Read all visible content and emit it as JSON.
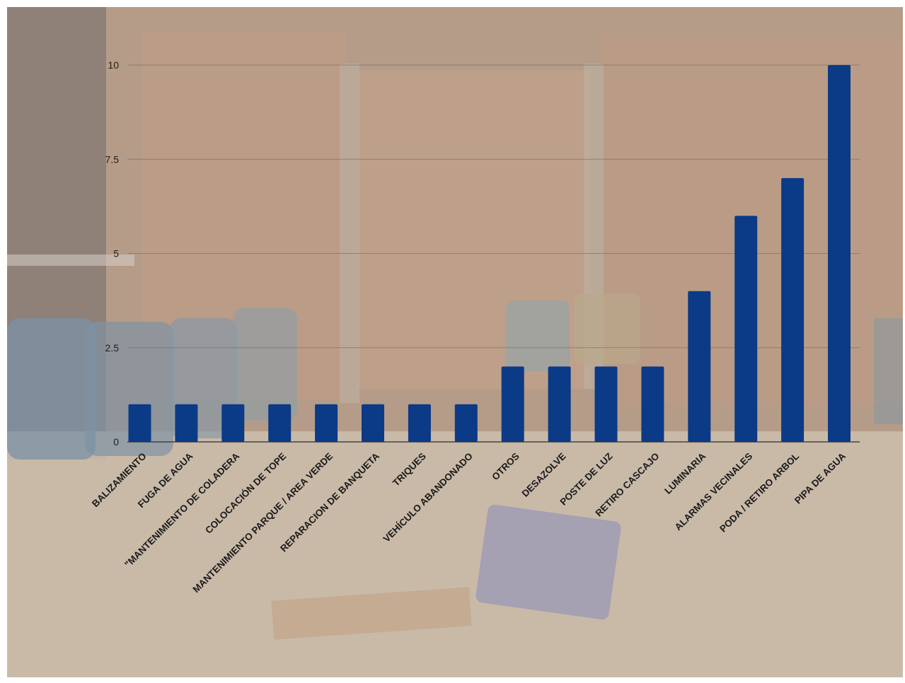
{
  "chart_data": {
    "type": "bar",
    "categories": [
      "BALIZAMIENTO",
      "FUGA DE AGUA",
      "\"MANTENIMIENTO DE COLADERA",
      "COLOCACIÓN DE TOPE",
      "MANTENIMIENTO PARQUE / AREA VERDE",
      "REPARACION DE BANQUETA",
      "TRIQUES",
      "VEHÍCULO ABANDONADO",
      "OTROS",
      "DESAZOLVE",
      "POSTE DE LUZ",
      "RETIRO CASCAJO",
      "LUMINARIA",
      "ALARMAS VECINALES",
      "PODA / RETIRO ARBOL",
      "PIPA DE AGUA"
    ],
    "values": [
      1,
      1,
      1,
      1,
      1,
      1,
      1,
      1,
      2,
      2,
      2,
      2,
      4,
      6,
      7,
      10
    ],
    "ylim": [
      0,
      10
    ],
    "yticks": [
      0,
      2.5,
      5,
      7.5,
      10
    ],
    "ytick_labels": [
      "0",
      "2.5",
      "5",
      "7.5",
      "10"
    ],
    "grid": true,
    "legend": "none",
    "bar_color": "#0b3a86"
  },
  "background": {
    "description_color": "#b49a86",
    "overlay": "photo of a brick-walled yard with barrels and debris"
  }
}
